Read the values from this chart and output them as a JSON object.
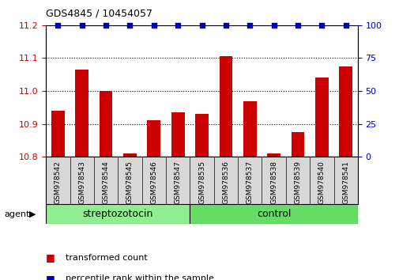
{
  "title": "GDS4845 / 10454057",
  "samples": [
    "GSM978542",
    "GSM978543",
    "GSM978544",
    "GSM978545",
    "GSM978546",
    "GSM978547",
    "GSM978535",
    "GSM978536",
    "GSM978537",
    "GSM978538",
    "GSM978539",
    "GSM978540",
    "GSM978541"
  ],
  "bar_values": [
    10.94,
    11.065,
    11.0,
    10.81,
    10.91,
    10.935,
    10.93,
    11.105,
    10.97,
    10.81,
    10.875,
    11.04,
    11.075
  ],
  "percentile_values": [
    100,
    100,
    100,
    100,
    100,
    100,
    100,
    100,
    100,
    100,
    100,
    100,
    100
  ],
  "ylim_left": [
    10.8,
    11.2
  ],
  "ylim_right": [
    0,
    100
  ],
  "yticks_left": [
    10.8,
    10.9,
    11.0,
    11.1,
    11.2
  ],
  "yticks_right": [
    0,
    25,
    50,
    75,
    100
  ],
  "bar_color": "#cc0000",
  "percentile_color": "#0000bb",
  "groups": [
    {
      "label": "streptozotocin",
      "start": 0,
      "end": 6,
      "color": "#90ee90"
    },
    {
      "label": "control",
      "start": 6,
      "end": 13,
      "color": "#66dd66"
    }
  ],
  "group_label": "agent",
  "background_color": "#ffffff",
  "tick_color_left": "#cc0000",
  "tick_color_right": "#0000bb",
  "grid_color": "#000000",
  "xtick_bg": "#d8d8d8",
  "legend_items": [
    {
      "label": "transformed count",
      "color": "#cc0000"
    },
    {
      "label": "percentile rank within the sample",
      "color": "#0000bb"
    }
  ],
  "streptozotocin_count": 6,
  "control_count": 7
}
